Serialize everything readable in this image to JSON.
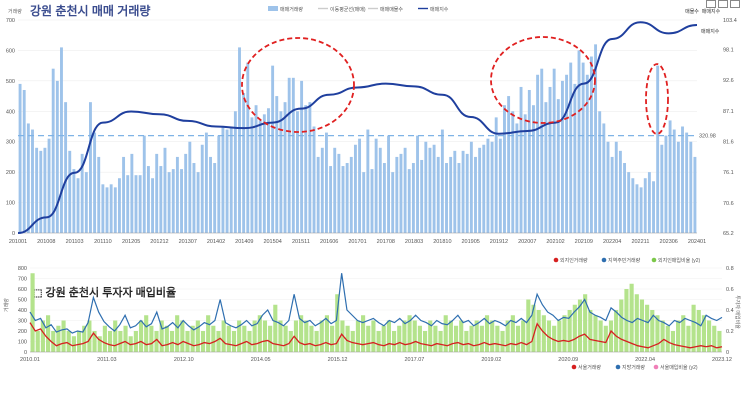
{
  "chart_data": [
    {
      "type": "bar",
      "title": "강원 춘천시 매매 거래량",
      "ylabel": "거래량",
      "ylim": [
        0,
        700
      ],
      "y2lim": [
        65.2,
        103.4
      ],
      "y_ticks": [
        "0",
        "100",
        "200",
        "300",
        "400",
        "500",
        "600",
        "700"
      ],
      "y2_ticks": [
        "65.2",
        "70.6",
        "76.1",
        "81.6",
        "87.1",
        "92.6",
        "98.1",
        "103.4"
      ],
      "x_ticks": [
        "201001",
        "201008",
        "201103",
        "201110",
        "201205",
        "201212",
        "201307",
        "201402",
        "201409",
        "201504",
        "201511",
        "201606",
        "201701",
        "201708",
        "201803",
        "201810",
        "201905",
        "201912",
        "202007",
        "202102",
        "202109",
        "202204",
        "202211",
        "202306",
        "202401"
      ],
      "legend": [
        "매매거래량",
        "이동평균선(매매)",
        "매매매물수",
        "매매지수"
      ],
      "legend_right": [
        "매물수",
        "매매지수"
      ],
      "series_label": "매매지수",
      "reference_line": {
        "value": 320,
        "label": "320.98"
      },
      "series": [
        {
          "name": "매매거래량",
          "type": "bar",
          "values": [
            490,
            470,
            360,
            340,
            280,
            270,
            280,
            310,
            540,
            500,
            610,
            430,
            270,
            210,
            180,
            260,
            200,
            430,
            330,
            250,
            160,
            150,
            160,
            150,
            180,
            250,
            190,
            260,
            190,
            190,
            320,
            220,
            180,
            260,
            220,
            280,
            200,
            210,
            250,
            210,
            260,
            300,
            230,
            200,
            290,
            330,
            250,
            230,
            320,
            350,
            340,
            350,
            400,
            610,
            460,
            560,
            380,
            420,
            370,
            390,
            410,
            550,
            450,
            400,
            430,
            510,
            510,
            400,
            500,
            420,
            430,
            350,
            250,
            280,
            330,
            220,
            280,
            260,
            220,
            230,
            250,
            290,
            310,
            200,
            340,
            210,
            310,
            280,
            230,
            320,
            200,
            250,
            260,
            280,
            210,
            230,
            320,
            240,
            300,
            280,
            290,
            250,
            340,
            230,
            250,
            270,
            230,
            270,
            260,
            300,
            250,
            280,
            290,
            310,
            300,
            380,
            310,
            420,
            450,
            400,
            360,
            480,
            390,
            470,
            420,
            520,
            540,
            430,
            480,
            540,
            440,
            500,
            520,
            560,
            490,
            600,
            560,
            520,
            580,
            620,
            400,
            360,
            300,
            250,
            300,
            270,
            230,
            200,
            180,
            160,
            150,
            180,
            200,
            170,
            550,
            290,
            320,
            370,
            340,
            300,
            350,
            330,
            300,
            250
          ]
        },
        {
          "name": "매매지수",
          "type": "line",
          "axis": "y2",
          "points": [
            [
              "201001",
              65.2
            ],
            [
              "201008",
              68.0
            ],
            [
              "201103",
              76.0
            ],
            [
              "201110",
              85.0
            ],
            [
              "201205",
              87.0
            ],
            [
              "201212",
              86.5
            ],
            [
              "201307",
              85.3
            ],
            [
              "201402",
              84.3
            ],
            [
              "201409",
              84.0
            ],
            [
              "201504",
              85.0
            ],
            [
              "201511",
              87.5
            ],
            [
              "201606",
              90.0
            ],
            [
              "201701",
              91.3
            ],
            [
              "201708",
              92.0
            ],
            [
              "201803",
              91.5
            ],
            [
              "201810",
              90.0
            ],
            [
              "201905",
              86.0
            ],
            [
              "201912",
              83.0
            ],
            [
              "202007",
              83.5
            ],
            [
              "202102",
              85.0
            ],
            [
              "202109",
              92.0
            ],
            [
              "202204",
              100.0
            ],
            [
              "202211",
              103.0
            ],
            [
              "202306",
              101.0
            ],
            [
              "202401",
              102.5
            ]
          ]
        }
      ]
    },
    {
      "type": "line",
      "title": "강원 춘천시 투자자 매입비율",
      "ylabel": "거래량",
      "y2label": "투자자 매입비율",
      "ylim": [
        0,
        800
      ],
      "y2lim": [
        0,
        0.8
      ],
      "y_ticks": [
        "0",
        "100",
        "200",
        "300",
        "400",
        "500",
        "600",
        "700",
        "800"
      ],
      "y2_ticks": [
        "0",
        "0.2",
        "0.4",
        "0.6",
        "0.8"
      ],
      "x_ticks": [
        "2010.01",
        "2011.03",
        "2012.10",
        "2014.05",
        "2015.12",
        "2017.07",
        "2019.02",
        "2020.09",
        "2022.04",
        "2023.12"
      ],
      "legend_top": [
        "외지인거래량",
        "지역주민거래량",
        "외지인매입비율 (y2)"
      ],
      "legend_bottom": [
        "서울거래량",
        "지방거래량",
        "서울매입비율 (y2)"
      ],
      "series": [
        {
          "name": "외지인매입비율 (y2)",
          "type": "bar",
          "axis": "y2",
          "values": [
            0.75,
            0.2,
            0.3,
            0.35,
            0.2,
            0.25,
            0.3,
            0.2,
            0.15,
            0.2,
            0.25,
            0.3,
            0.2,
            0.15,
            0.25,
            0.2,
            0.3,
            0.2,
            0.25,
            0.15,
            0.2,
            0.3,
            0.35,
            0.25,
            0.2,
            0.3,
            0.25,
            0.2,
            0.35,
            0.3,
            0.2,
            0.25,
            0.3,
            0.2,
            0.35,
            0.25,
            0.2,
            0.3,
            0.25,
            0.2,
            0.3,
            0.25,
            0.2,
            0.3,
            0.35,
            0.3,
            0.25,
            0.45,
            0.3,
            0.25,
            0.2,
            0.3,
            0.35,
            0.3,
            0.25,
            0.2,
            0.3,
            0.35,
            0.25,
            0.55,
            0.3,
            0.25,
            0.2,
            0.3,
            0.35,
            0.25,
            0.3,
            0.2,
            0.25,
            0.3,
            0.2,
            0.25,
            0.3,
            0.35,
            0.3,
            0.25,
            0.2,
            0.3,
            0.25,
            0.2,
            0.35,
            0.3,
            0.25,
            0.3,
            0.2,
            0.25,
            0.3,
            0.25,
            0.35,
            0.3,
            0.25,
            0.2,
            0.3,
            0.35,
            0.25,
            0.3,
            0.5,
            0.45,
            0.4,
            0.35,
            0.3,
            0.25,
            0.3,
            0.35,
            0.4,
            0.45,
            0.5,
            0.55,
            0.4,
            0.35,
            0.3,
            0.25,
            0.3,
            0.4,
            0.5,
            0.6,
            0.65,
            0.55,
            0.5,
            0.45,
            0.4,
            0.35,
            0.3,
            0.25,
            0.2,
            0.3,
            0.35,
            0.25,
            0.45,
            0.4,
            0.35,
            0.3,
            0.25,
            0.2
          ]
        },
        {
          "name": "지역주민거래량",
          "type": "line",
          "values": [
            380,
            300,
            320,
            230,
            260,
            190,
            210,
            220,
            180,
            200,
            190,
            280,
            520,
            380,
            290,
            240,
            200,
            260,
            350,
            230,
            250,
            300,
            240,
            270,
            380,
            220,
            240,
            280,
            230,
            300,
            250,
            210,
            240,
            280,
            260,
            300,
            500,
            280,
            250,
            230,
            260,
            300,
            250,
            270,
            350,
            400,
            300,
            280,
            250,
            300,
            550,
            320,
            280,
            300,
            250,
            280,
            320,
            270,
            300,
            750,
            400,
            350,
            300,
            280,
            300,
            320,
            280,
            250,
            300,
            280,
            320,
            270,
            300,
            350,
            300,
            280,
            250,
            300,
            270,
            260,
            300,
            350,
            280,
            300,
            250,
            280,
            320,
            270,
            300,
            280,
            250,
            300,
            280,
            320,
            280,
            350,
            550,
            450,
            380,
            350,
            300,
            330,
            320,
            380,
            430,
            500,
            380,
            350,
            330,
            300,
            420,
            380,
            330,
            300,
            280,
            320,
            300,
            280,
            350,
            300,
            280,
            250,
            300,
            280,
            320,
            300,
            280,
            250,
            350,
            320,
            300,
            330
          ]
        },
        {
          "name": "외지인거래량",
          "type": "line",
          "values": [
            280,
            200,
            220,
            150,
            100,
            60,
            80,
            90,
            60,
            70,
            80,
            100,
            180,
            120,
            90,
            70,
            60,
            80,
            100,
            70,
            80,
            100,
            70,
            80,
            120,
            60,
            70,
            90,
            70,
            100,
            80,
            60,
            70,
            90,
            80,
            100,
            130,
            80,
            70,
            60,
            80,
            100,
            70,
            80,
            100,
            110,
            80,
            70,
            60,
            80,
            150,
            90,
            70,
            80,
            60,
            70,
            90,
            70,
            80,
            170,
            110,
            90,
            80,
            70,
            80,
            90,
            70,
            60,
            80,
            70,
            90,
            70,
            80,
            100,
            80,
            70,
            60,
            80,
            70,
            60,
            80,
            90,
            70,
            80,
            60,
            70,
            90,
            70,
            80,
            70,
            60,
            80,
            70,
            90,
            70,
            100,
            270,
            200,
            150,
            120,
            100,
            110,
            100,
            120,
            150,
            170,
            120,
            110,
            100,
            90,
            200,
            150,
            120,
            100,
            80,
            60,
            50,
            40,
            60,
            80,
            120,
            90,
            70,
            60,
            50,
            40,
            50,
            60,
            50,
            60,
            40,
            50
          ]
        }
      ]
    }
  ]
}
